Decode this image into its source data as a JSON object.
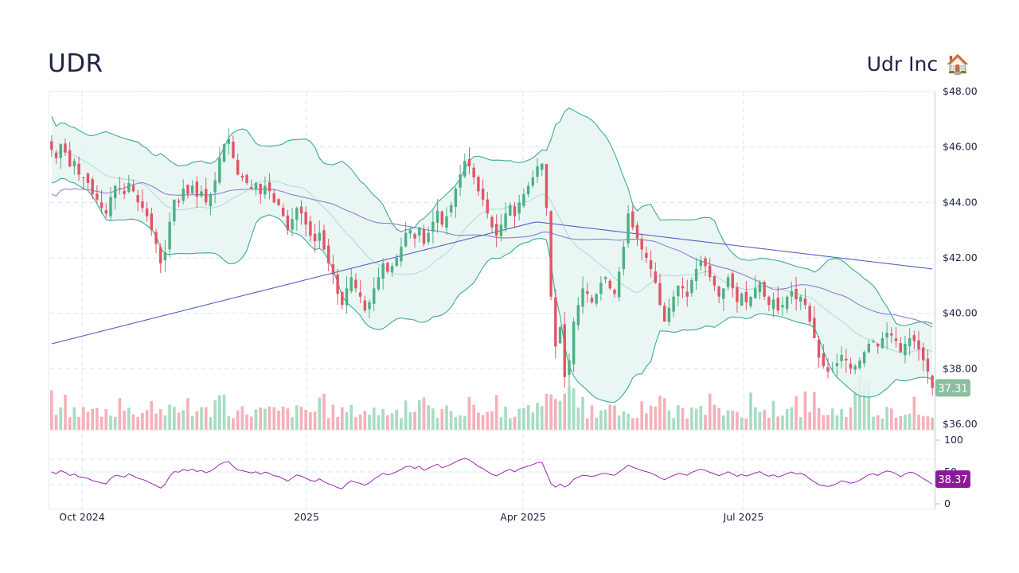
{
  "header": {
    "ticker": "UDR",
    "company": "Udr Inc",
    "company_icon": "house-icon",
    "company_icon_glyph": "🏠"
  },
  "colors": {
    "up": "#4caf85",
    "down": "#e05565",
    "vol_up": "#a8dcc2",
    "vol_down": "#f4b1b8",
    "band_line": "#3aaa94",
    "band_fill": "#e6f4f2",
    "band_mid": "#a8dccf",
    "ma_short": "#8b7fd0",
    "ma_long": "#5560c0",
    "rsi": "#9c27b0",
    "grid": "#d4e8ee",
    "last_price_badge": "#8bbf9f",
    "rsi_badge": "#8e1a9a"
  },
  "chart_data": {
    "type": "candlestick",
    "title": "UDR",
    "subtitle": "Udr Inc",
    "price_axis": {
      "ticks": [
        "$48.00",
        "$46.00",
        "$44.00",
        "$42.00",
        "$40.00",
        "$38.00",
        "$36.00"
      ],
      "tick_values": [
        48,
        46,
        44,
        42,
        40,
        38,
        36
      ],
      "ylim": [
        36,
        48
      ],
      "position": "right"
    },
    "x_axis": {
      "ticks": [
        "Oct 2024",
        "2025",
        "Apr 2025",
        "Jul 2025"
      ],
      "tick_x": [
        103,
        385,
        657,
        934
      ]
    },
    "rsi_axis": {
      "ticks": [
        "100",
        "50",
        "0"
      ],
      "tick_values": [
        100,
        50,
        0
      ],
      "guide_levels": [
        70,
        50,
        30
      ]
    },
    "last_price": "37.31",
    "last_rsi": "38.37",
    "overlays": [
      "Bollinger Bands (20, 2)",
      "SMA 50",
      "SMA 200",
      "Volume",
      "RSI 14"
    ],
    "close_series": [
      45.9,
      45.6,
      46.1,
      45.8,
      45.3,
      45.5,
      45.0,
      44.9,
      44.7,
      44.3,
      44.1,
      43.8,
      43.6,
      44.2,
      44.6,
      44.5,
      44.3,
      44.7,
      44.4,
      44.0,
      43.8,
      43.5,
      43.0,
      42.5,
      41.8,
      42.2,
      43.3,
      44.1,
      44.0,
      44.5,
      44.3,
      44.6,
      44.2,
      44.4,
      44.0,
      44.3,
      44.8,
      45.6,
      46.1,
      46.3,
      45.6,
      45.0,
      44.9,
      44.7,
      44.5,
      44.7,
      44.3,
      44.6,
      44.4,
      44.0,
      43.9,
      43.5,
      43.0,
      43.4,
      43.8,
      43.6,
      43.2,
      42.8,
      42.6,
      42.9,
      42.3,
      41.8,
      41.4,
      40.7,
      40.3,
      40.9,
      41.3,
      40.9,
      40.6,
      40.1,
      40.4,
      40.9,
      41.3,
      41.8,
      41.5,
      41.7,
      42.0,
      42.4,
      42.9,
      43.0,
      42.7,
      43.1,
      42.5,
      42.9,
      43.3,
      43.7,
      43.2,
      43.5,
      43.9,
      44.5,
      45.0,
      45.5,
      45.3,
      44.9,
      44.4,
      44.1,
      43.6,
      43.1,
      42.8,
      43.2,
      43.6,
      43.9,
      43.5,
      44.0,
      44.3,
      44.6,
      44.9,
      45.3,
      45.4,
      43.8,
      40.6,
      38.8,
      39.5,
      37.7,
      38.3,
      39.7,
      40.3,
      40.9,
      40.7,
      40.4,
      40.7,
      41.1,
      41.3,
      40.9,
      40.7,
      41.5,
      42.4,
      43.6,
      43.1,
      42.7,
      42.3,
      42.0,
      41.6,
      41.1,
      40.3,
      39.7,
      40.2,
      40.6,
      41.0,
      40.9,
      40.6,
      41.2,
      41.6,
      41.9,
      41.7,
      41.3,
      41.0,
      40.6,
      40.9,
      41.3,
      40.9,
      40.4,
      40.7,
      40.4,
      40.6,
      40.9,
      41.1,
      40.6,
      40.3,
      40.5,
      40.1,
      40.3,
      40.6,
      40.8,
      40.5,
      40.6,
      40.3,
      39.7,
      39.1,
      38.4,
      38.1,
      37.9,
      38.0,
      38.2,
      38.5,
      38.3,
      38.0,
      38.1,
      38.3,
      38.6,
      38.9,
      39.0,
      38.8,
      39.1,
      39.3,
      39.2,
      39.0,
      38.6,
      38.9,
      39.1,
      39.0,
      38.7,
      38.3,
      37.9,
      37.31
    ]
  }
}
